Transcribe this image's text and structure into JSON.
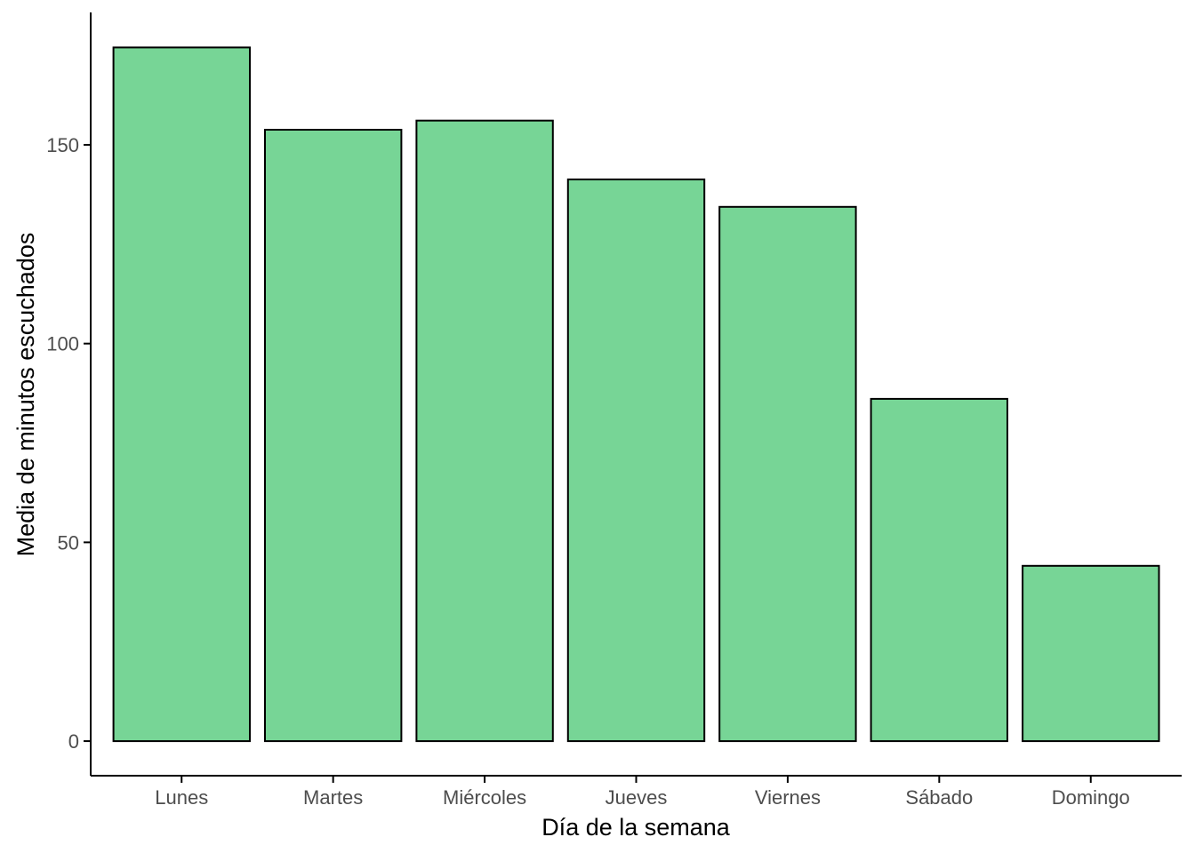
{
  "chart_data": {
    "type": "bar",
    "title": "",
    "xlabel": "Día de la semana",
    "ylabel": "Media de minutos escuchados",
    "categories": [
      "Lunes",
      "Martes",
      "Miércoles",
      "Jueves",
      "Viernes",
      "Sábado",
      "Domingo"
    ],
    "values": [
      174.5,
      153.8,
      156.1,
      141.3,
      134.4,
      86.1,
      44.1
    ],
    "yticks": [
      0,
      50,
      100,
      150
    ],
    "ylim": [
      -8.7,
      183.3
    ],
    "grid": false,
    "legend": "none",
    "colors": {
      "bar_fill": "#77D596",
      "bar_stroke": "#000000",
      "axis": "#000000",
      "tick_text": "#4D4D4D"
    }
  }
}
